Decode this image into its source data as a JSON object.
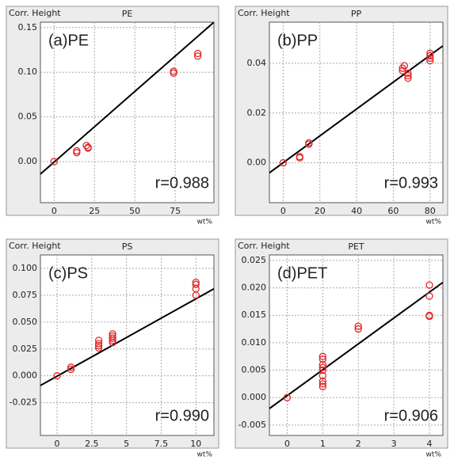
{
  "chart_data": [
    {
      "type": "scatter",
      "title": "PE",
      "y_label": "Corr. Height",
      "x_label": "wt%",
      "annotation": "(a)PE",
      "r_label": "r=0.988",
      "x": [
        0,
        14,
        14,
        20,
        21,
        21,
        74,
        74,
        89,
        89
      ],
      "values": [
        0,
        0.01,
        0.012,
        0.018,
        0.016,
        0.015,
        0.099,
        0.101,
        0.118,
        0.121
      ],
      "color": "#e02828",
      "xlim": [
        -8.5,
        99
      ],
      "ylim": [
        -0.046,
        0.156
      ],
      "xticks": [
        0,
        25,
        50,
        75
      ],
      "yticks": [
        {
          "value": 0,
          "label": "0.00"
        },
        0.05,
        {
          "value": 0.1,
          "label": "0.10"
        },
        0.15
      ],
      "grid": true,
      "trend_line": {
        "x": [
          -8.5,
          99
        ],
        "y": [
          -0.014,
          0.156
        ],
        "color": "#000000"
      }
    },
    {
      "type": "scatter",
      "title": "PP",
      "y_label": "Corr. Height",
      "x_label": "wt%",
      "annotation": "(b)PP",
      "r_label": "r=0.993",
      "x": [
        0,
        9,
        9,
        14,
        14,
        65,
        65,
        66,
        68,
        68,
        68,
        80,
        80,
        80,
        80
      ],
      "values": [
        0,
        0.002,
        0.0025,
        0.0075,
        0.008,
        0.037,
        0.038,
        0.039,
        0.034,
        0.035,
        0.036,
        0.041,
        0.042,
        0.043,
        0.044
      ],
      "color": "#e02828",
      "xlim": [
        -7.5,
        87
      ],
      "ylim": [
        -0.016,
        0.0565
      ],
      "xticks": [
        0,
        20,
        40,
        60,
        80
      ],
      "yticks": [
        {
          "value": 0,
          "label": "0.00"
        },
        0.02,
        0.04
      ],
      "grid": true,
      "trend_line": {
        "x": [
          -7.5,
          87
        ],
        "y": [
          -0.004,
          0.047
        ],
        "color": "#000000"
      }
    },
    {
      "type": "scatter",
      "title": "PS",
      "y_label": "Corr. Height",
      "x_label": "wt%",
      "annotation": "(c)PS",
      "r_label": "r=0.990",
      "x": [
        0,
        1,
        1,
        3,
        3,
        3,
        3,
        4,
        4,
        4,
        4,
        4,
        10,
        10,
        10,
        10
      ],
      "values": [
        0,
        0.006,
        0.008,
        0.026,
        0.028,
        0.03,
        0.033,
        0.031,
        0.033,
        0.035,
        0.037,
        0.039,
        0.075,
        0.081,
        0.085,
        0.087
      ],
      "color": "#e02828",
      "xlim": [
        -1.2,
        11.3
      ],
      "ylim": [
        -0.0555,
        0.1125
      ],
      "xticks": [
        0,
        2.5,
        5,
        7.5,
        10
      ],
      "yticks": [
        -0.025,
        {
          "value": 0,
          "label": "0.000"
        },
        0.025,
        {
          "value": 0.05,
          "label": "0.050"
        },
        0.075,
        {
          "value": 0.1,
          "label": "0.100"
        }
      ],
      "grid": true,
      "trend_line": {
        "x": [
          -1.2,
          11.3
        ],
        "y": [
          -0.009,
          0.081
        ],
        "color": "#000000"
      }
    },
    {
      "type": "scatter",
      "title": "PET",
      "y_label": "Corr. Height",
      "x_label": "wt%",
      "annotation": "(d)PET",
      "r_label": "r=0.906",
      "x": [
        0,
        1,
        1,
        1,
        1,
        1,
        1,
        1,
        1,
        1,
        2,
        2,
        4,
        4,
        4,
        4
      ],
      "values": [
        0,
        0.002,
        0.0025,
        0.003,
        0.004,
        0.005,
        0.0055,
        0.006,
        0.007,
        0.0075,
        0.0125,
        0.013,
        0.0148,
        0.015,
        0.0185,
        0.0205
      ],
      "color": "#e02828",
      "xlim": [
        -0.5,
        4.38
      ],
      "ylim": [
        -0.0069,
        0.026
      ],
      "xticks": [
        0,
        1,
        2,
        3,
        4
      ],
      "yticks": [
        -0.005,
        {
          "value": 0,
          "label": "0.000"
        },
        0.005,
        {
          "value": 0.01,
          "label": "0.010"
        },
        0.015,
        {
          "value": 0.02,
          "label": "0.020"
        },
        0.025
      ],
      "grid": true,
      "trend_line": {
        "x": [
          -0.5,
          4.38
        ],
        "y": [
          -0.002,
          0.021
        ],
        "color": "#000000"
      }
    }
  ]
}
